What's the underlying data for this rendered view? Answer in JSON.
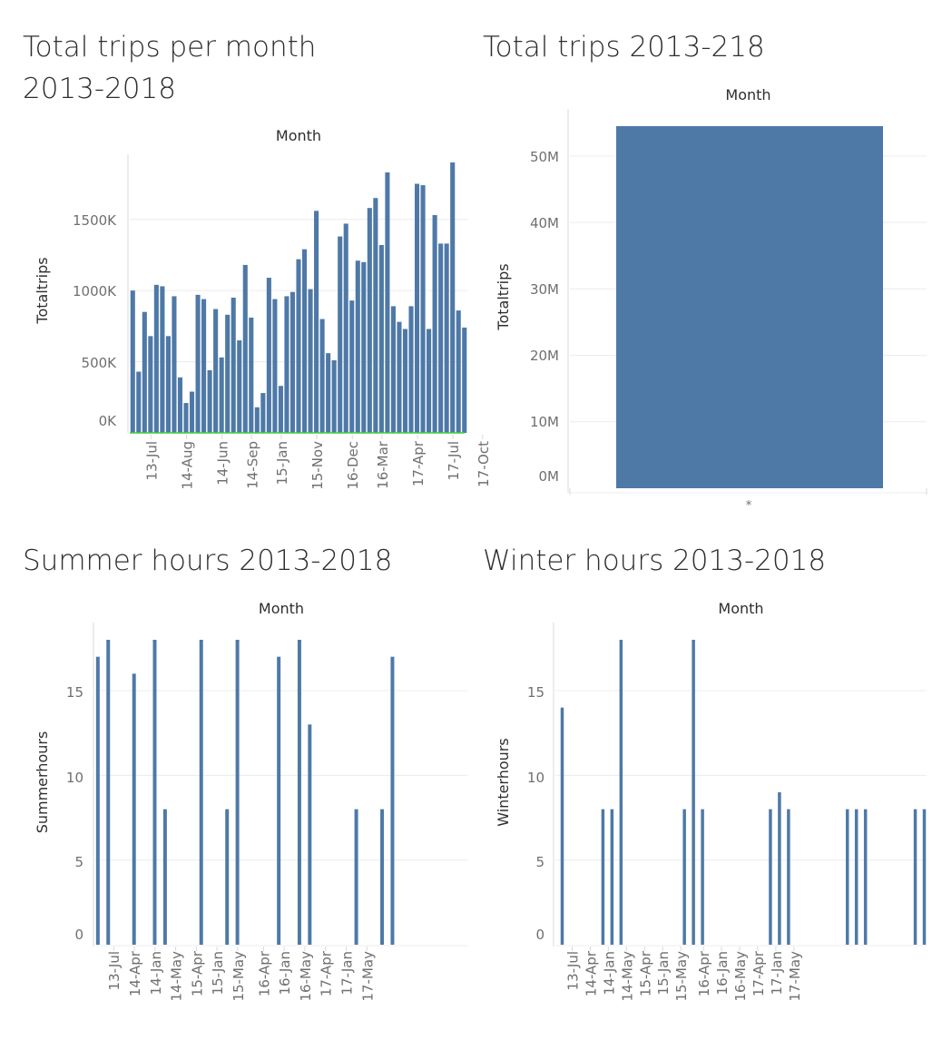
{
  "chart_data": [
    {
      "id": "c1",
      "type": "bar",
      "title": "Total trips per month 2013-2018",
      "title_lines": [
        "Total trips per month",
        "2013-2018"
      ],
      "header": "Month",
      "ylabel": "Totaltrips",
      "ylim": [
        0,
        1900000
      ],
      "yticks": [
        0,
        500000,
        1000000,
        1500000
      ],
      "ytick_labels": [
        "0K",
        "500K",
        "1000K",
        "1500K"
      ],
      "xtick_labels": [
        "13-Jul",
        "14-Aug",
        "14-Jun",
        "14-Sep",
        "15-Jan",
        "15-Nov",
        "16-Dec",
        "16-Mar",
        "17-Apr",
        "17-Jul",
        "17-Oct"
      ],
      "xtick_positions": [
        2,
        8,
        14,
        19,
        24,
        30,
        36,
        41,
        47,
        53,
        58
      ],
      "baseline_color": "#3fcf3f",
      "values": [
        1000000,
        430000,
        850000,
        680000,
        1040000,
        1030000,
        680000,
        960000,
        390000,
        210000,
        290000,
        970000,
        940000,
        440000,
        870000,
        530000,
        830000,
        950000,
        650000,
        1180000,
        810000,
        180000,
        280000,
        1090000,
        940000,
        330000,
        960000,
        990000,
        1220000,
        1290000,
        1010000,
        1560000,
        800000,
        560000,
        510000,
        1380000,
        1470000,
        930000,
        1210000,
        1200000,
        1580000,
        1650000,
        1320000,
        1830000,
        890000,
        780000,
        730000,
        890000,
        1750000,
        1740000,
        730000,
        1530000,
        1330000,
        1330000,
        1900000,
        860000,
        740000
      ]
    },
    {
      "id": "c2",
      "type": "bar",
      "title": "Total trips 2013-218",
      "title_lines": [
        "Total trips 2013-218"
      ],
      "header": "Month",
      "ylabel": "Totaltrips",
      "ylim": [
        0,
        54000000
      ],
      "yticks": [
        0,
        10000000,
        20000000,
        30000000,
        40000000,
        50000000
      ],
      "ytick_labels": [
        "0M",
        "10M",
        "20M",
        "30M",
        "40M",
        "50M"
      ],
      "categories": [
        "*"
      ],
      "values": [
        54500000
      ]
    },
    {
      "id": "c3",
      "type": "bar",
      "title": "Summer hours 2013-2018",
      "title_lines": [
        "Summer hours 2013-2018"
      ],
      "header": "Month",
      "ylabel": "Summerhours",
      "ylim": [
        0,
        18
      ],
      "yticks": [
        0,
        5,
        10,
        15
      ],
      "ytick_labels": [
        "0",
        "5",
        "10",
        "15"
      ],
      "xtick_labels": [
        "13-Jul",
        "14-Apr",
        "14-Jan",
        "14-May",
        "15-Apr",
        "15-Jan",
        "15-May",
        "16-Apr",
        "16-Jan",
        "16-May",
        "17-Apr",
        "17-Jan",
        "17-May"
      ],
      "xtick_positions": [
        2,
        6,
        10,
        14,
        18,
        22,
        26,
        31,
        35,
        39,
        43,
        47,
        51
      ],
      "values": [
        17,
        0,
        18,
        0,
        0,
        0,
        0,
        16,
        0,
        0,
        0,
        18,
        0,
        8,
        0,
        0,
        0,
        0,
        0,
        0,
        18,
        0,
        0,
        0,
        0,
        8,
        0,
        18,
        0,
        0,
        0,
        0,
        0,
        0,
        0,
        17,
        0,
        0,
        0,
        18,
        0,
        13,
        0,
        0,
        0,
        0,
        0,
        0,
        0,
        0,
        8,
        0,
        0,
        0,
        0,
        8,
        0,
        17,
        0,
        0,
        0,
        0,
        0,
        0,
        0,
        0,
        0,
        0,
        0,
        0,
        0,
        0
      ]
    },
    {
      "id": "c4",
      "type": "bar",
      "title": "Winter hours 2013-2018",
      "title_lines": [
        "Winter hours 2013-2018"
      ],
      "header": "Month",
      "ylabel": "Winterhours",
      "ylim": [
        0,
        18
      ],
      "yticks": [
        0,
        5,
        10,
        15
      ],
      "ytick_labels": [
        "0",
        "5",
        "10",
        "15"
      ],
      "xtick_labels": [
        "13-Jul",
        "14-Apr",
        "14-Jan",
        "14-May",
        "15-Apr",
        "15-Jan",
        "15-May",
        "16-Apr",
        "16-Jan",
        "16-May",
        "17-Apr",
        "17-Jan",
        "17-May"
      ],
      "xtick_positions": [
        2,
        6,
        10,
        14,
        18,
        22,
        26,
        31,
        35,
        39,
        43,
        47,
        51
      ],
      "values": [
        0,
        14,
        0,
        0,
        0,
        0,
        0,
        0,
        0,
        0,
        8,
        0,
        8,
        0,
        18,
        0,
        0,
        0,
        0,
        0,
        0,
        0,
        0,
        0,
        0,
        0,
        0,
        0,
        8,
        0,
        18,
        0,
        8,
        0,
        0,
        0,
        0,
        0,
        0,
        0,
        0,
        0,
        0,
        0,
        0,
        0,
        0,
        8,
        0,
        9,
        0,
        8,
        0,
        0,
        0,
        0,
        0,
        0,
        0,
        0,
        0,
        0,
        0,
        0,
        8,
        0,
        8,
        0,
        8,
        0,
        0,
        0,
        0,
        0,
        0,
        0,
        0,
        0,
        0,
        8,
        0,
        8
      ]
    }
  ]
}
